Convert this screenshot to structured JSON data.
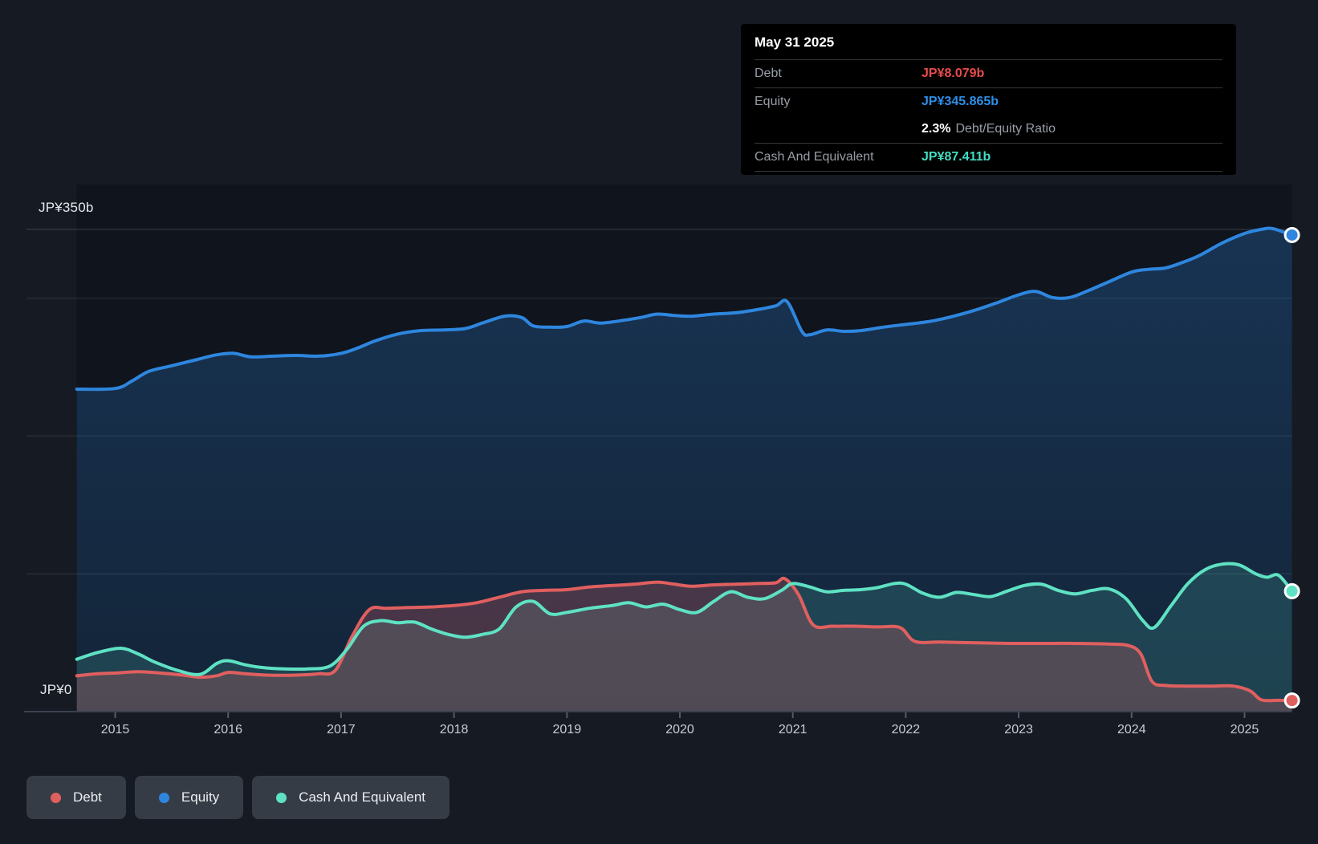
{
  "colors": {
    "background": "#151a23",
    "plot_background": "#0f141d",
    "debt": "#e05f5f",
    "equity": "#2e86de",
    "cash": "#5fe2c4",
    "tooltip_debt": "#e84b4b",
    "tooltip_equity": "#2e8fe8",
    "tooltip_cash": "#43dcc3",
    "grid": "rgba(255,255,255,0.10)",
    "grid_top": "rgba(255,255,255,0.14)",
    "axis": "#3a424e",
    "tick": "#535b67"
  },
  "tooltip": {
    "date": "May 31 2025",
    "debt_label": "Debt",
    "debt_value": "JP¥8.079b",
    "equity_label": "Equity",
    "equity_value": "JP¥345.865b",
    "ratio_value": "2.3%",
    "ratio_label": "Debt/Equity Ratio",
    "cash_label": "Cash And Equivalent",
    "cash_value": "JP¥87.411b"
  },
  "y_axis": {
    "top_label": "JP¥350b",
    "bottom_label": "JP¥0"
  },
  "legend": {
    "items": [
      {
        "label": "Debt",
        "color": "#e05f5f"
      },
      {
        "label": "Equity",
        "color": "#2e86de"
      },
      {
        "label": "Cash And Equivalent",
        "color": "#5fe2c4"
      }
    ]
  },
  "chart_data": {
    "type": "area",
    "unit": "JP¥ billions",
    "x_range": [
      2014.66,
      2025.42
    ],
    "ylim": [
      0,
      350
    ],
    "grid": "horizontal",
    "gridline_values": [
      350,
      300,
      200,
      100
    ],
    "x_tick_years": [
      "2015",
      "2016",
      "2017",
      "2018",
      "2019",
      "2020",
      "2021",
      "2022",
      "2023",
      "2024",
      "2025"
    ],
    "legend_position": "bottom-left",
    "series": [
      {
        "name": "Equity",
        "points": [
          [
            2014.66,
            234
          ],
          [
            2015.0,
            234.5
          ],
          [
            2015.15,
            240
          ],
          [
            2015.3,
            247
          ],
          [
            2015.5,
            251
          ],
          [
            2015.7,
            255
          ],
          [
            2015.9,
            259
          ],
          [
            2016.05,
            260
          ],
          [
            2016.2,
            257.5
          ],
          [
            2016.4,
            258
          ],
          [
            2016.6,
            258.5
          ],
          [
            2016.8,
            258
          ],
          [
            2017.0,
            260
          ],
          [
            2017.15,
            264
          ],
          [
            2017.3,
            269
          ],
          [
            2017.5,
            274
          ],
          [
            2017.7,
            276.5
          ],
          [
            2017.9,
            277
          ],
          [
            2018.1,
            278
          ],
          [
            2018.25,
            282
          ],
          [
            2018.45,
            287
          ],
          [
            2018.6,
            286
          ],
          [
            2018.7,
            280
          ],
          [
            2018.85,
            279
          ],
          [
            2019.0,
            279.5
          ],
          [
            2019.15,
            283.5
          ],
          [
            2019.3,
            282
          ],
          [
            2019.5,
            284
          ],
          [
            2019.65,
            286
          ],
          [
            2019.8,
            288.5
          ],
          [
            2019.95,
            287.5
          ],
          [
            2020.1,
            287
          ],
          [
            2020.3,
            288.5
          ],
          [
            2020.5,
            289.5
          ],
          [
            2020.7,
            292
          ],
          [
            2020.85,
            294.5
          ],
          [
            2020.95,
            297.5
          ],
          [
            2021.08,
            276
          ],
          [
            2021.15,
            273.5
          ],
          [
            2021.3,
            277
          ],
          [
            2021.45,
            276
          ],
          [
            2021.6,
            276.5
          ],
          [
            2021.8,
            279
          ],
          [
            2022.0,
            281
          ],
          [
            2022.2,
            283
          ],
          [
            2022.4,
            286.5
          ],
          [
            2022.6,
            291
          ],
          [
            2022.8,
            296.5
          ],
          [
            2023.0,
            302.5
          ],
          [
            2023.15,
            305
          ],
          [
            2023.3,
            300.5
          ],
          [
            2023.45,
            300.5
          ],
          [
            2023.6,
            305
          ],
          [
            2023.8,
            312
          ],
          [
            2024.0,
            319
          ],
          [
            2024.15,
            321
          ],
          [
            2024.3,
            322
          ],
          [
            2024.45,
            326
          ],
          [
            2024.6,
            331
          ],
          [
            2024.8,
            340
          ],
          [
            2025.0,
            347
          ],
          [
            2025.15,
            350
          ],
          [
            2025.25,
            350.5
          ],
          [
            2025.42,
            345.865
          ]
        ]
      },
      {
        "name": "Cash And Equivalent",
        "points": [
          [
            2014.66,
            38
          ],
          [
            2014.85,
            43
          ],
          [
            2015.05,
            46
          ],
          [
            2015.2,
            42
          ],
          [
            2015.35,
            36
          ],
          [
            2015.55,
            30
          ],
          [
            2015.75,
            27
          ],
          [
            2015.9,
            35
          ],
          [
            2016.0,
            37
          ],
          [
            2016.15,
            34
          ],
          [
            2016.3,
            32
          ],
          [
            2016.5,
            31
          ],
          [
            2016.7,
            31
          ],
          [
            2016.9,
            33
          ],
          [
            2017.05,
            45
          ],
          [
            2017.2,
            62
          ],
          [
            2017.35,
            66
          ],
          [
            2017.5,
            64.5
          ],
          [
            2017.65,
            65
          ],
          [
            2017.8,
            60
          ],
          [
            2017.95,
            56
          ],
          [
            2018.1,
            54
          ],
          [
            2018.25,
            56
          ],
          [
            2018.4,
            60
          ],
          [
            2018.55,
            76
          ],
          [
            2018.7,
            80
          ],
          [
            2018.85,
            71
          ],
          [
            2019.0,
            72
          ],
          [
            2019.2,
            75
          ],
          [
            2019.4,
            77
          ],
          [
            2019.55,
            79
          ],
          [
            2019.7,
            76
          ],
          [
            2019.85,
            78
          ],
          [
            2020.0,
            74
          ],
          [
            2020.15,
            72
          ],
          [
            2020.3,
            80
          ],
          [
            2020.45,
            87
          ],
          [
            2020.6,
            83
          ],
          [
            2020.75,
            82
          ],
          [
            2020.9,
            88
          ],
          [
            2021.0,
            93
          ],
          [
            2021.15,
            90.5
          ],
          [
            2021.3,
            87
          ],
          [
            2021.45,
            88
          ],
          [
            2021.6,
            88.5
          ],
          [
            2021.75,
            90
          ],
          [
            2021.9,
            93
          ],
          [
            2022.0,
            92.5
          ],
          [
            2022.15,
            86
          ],
          [
            2022.3,
            83
          ],
          [
            2022.45,
            86.5
          ],
          [
            2022.6,
            85
          ],
          [
            2022.75,
            83.5
          ],
          [
            2022.9,
            87.5
          ],
          [
            2023.05,
            91.5
          ],
          [
            2023.2,
            92.5
          ],
          [
            2023.35,
            88
          ],
          [
            2023.5,
            85.5
          ],
          [
            2023.65,
            88
          ],
          [
            2023.8,
            89
          ],
          [
            2023.95,
            82
          ],
          [
            2024.1,
            66
          ],
          [
            2024.2,
            61
          ],
          [
            2024.35,
            77
          ],
          [
            2024.5,
            93
          ],
          [
            2024.65,
            103
          ],
          [
            2024.8,
            107
          ],
          [
            2024.95,
            106.5
          ],
          [
            2025.1,
            100
          ],
          [
            2025.2,
            97.5
          ],
          [
            2025.3,
            99
          ],
          [
            2025.42,
            87.411
          ]
        ]
      },
      {
        "name": "Debt",
        "points": [
          [
            2014.66,
            26
          ],
          [
            2014.85,
            27.5
          ],
          [
            2015.0,
            28
          ],
          [
            2015.2,
            29
          ],
          [
            2015.4,
            28
          ],
          [
            2015.6,
            26.5
          ],
          [
            2015.75,
            25
          ],
          [
            2015.9,
            26
          ],
          [
            2016.0,
            28.5
          ],
          [
            2016.15,
            27.5
          ],
          [
            2016.35,
            26.5
          ],
          [
            2016.6,
            26.5
          ],
          [
            2016.8,
            27.5
          ],
          [
            2016.95,
            30
          ],
          [
            2017.1,
            55
          ],
          [
            2017.25,
            74
          ],
          [
            2017.4,
            75
          ],
          [
            2017.6,
            75.5
          ],
          [
            2017.8,
            76
          ],
          [
            2018.0,
            77
          ],
          [
            2018.2,
            79
          ],
          [
            2018.4,
            83
          ],
          [
            2018.6,
            87
          ],
          [
            2018.8,
            88
          ],
          [
            2019.0,
            88.5
          ],
          [
            2019.2,
            90.5
          ],
          [
            2019.4,
            91.5
          ],
          [
            2019.6,
            92.5
          ],
          [
            2019.8,
            94
          ],
          [
            2019.95,
            92.5
          ],
          [
            2020.1,
            91
          ],
          [
            2020.3,
            92
          ],
          [
            2020.5,
            92.5
          ],
          [
            2020.7,
            93
          ],
          [
            2020.85,
            93.5
          ],
          [
            2020.93,
            96.5
          ],
          [
            2021.05,
            85
          ],
          [
            2021.18,
            63
          ],
          [
            2021.35,
            62
          ],
          [
            2021.55,
            62
          ],
          [
            2021.75,
            61.5
          ],
          [
            2021.95,
            61
          ],
          [
            2022.08,
            51
          ],
          [
            2022.3,
            50.5
          ],
          [
            2022.6,
            50
          ],
          [
            2022.9,
            49.5
          ],
          [
            2023.2,
            49.5
          ],
          [
            2023.5,
            49.5
          ],
          [
            2023.8,
            49
          ],
          [
            2023.97,
            48
          ],
          [
            2024.08,
            42
          ],
          [
            2024.18,
            22
          ],
          [
            2024.3,
            19
          ],
          [
            2024.5,
            18.5
          ],
          [
            2024.7,
            18.5
          ],
          [
            2024.9,
            18.5
          ],
          [
            2025.05,
            15
          ],
          [
            2025.15,
            8.5
          ],
          [
            2025.3,
            8.2
          ],
          [
            2025.42,
            8.079
          ]
        ]
      }
    ],
    "end_values": {
      "Debt": "JP¥8.079b",
      "Equity": "JP¥345.865b",
      "Cash And Equivalent": "JP¥87.411b"
    }
  }
}
